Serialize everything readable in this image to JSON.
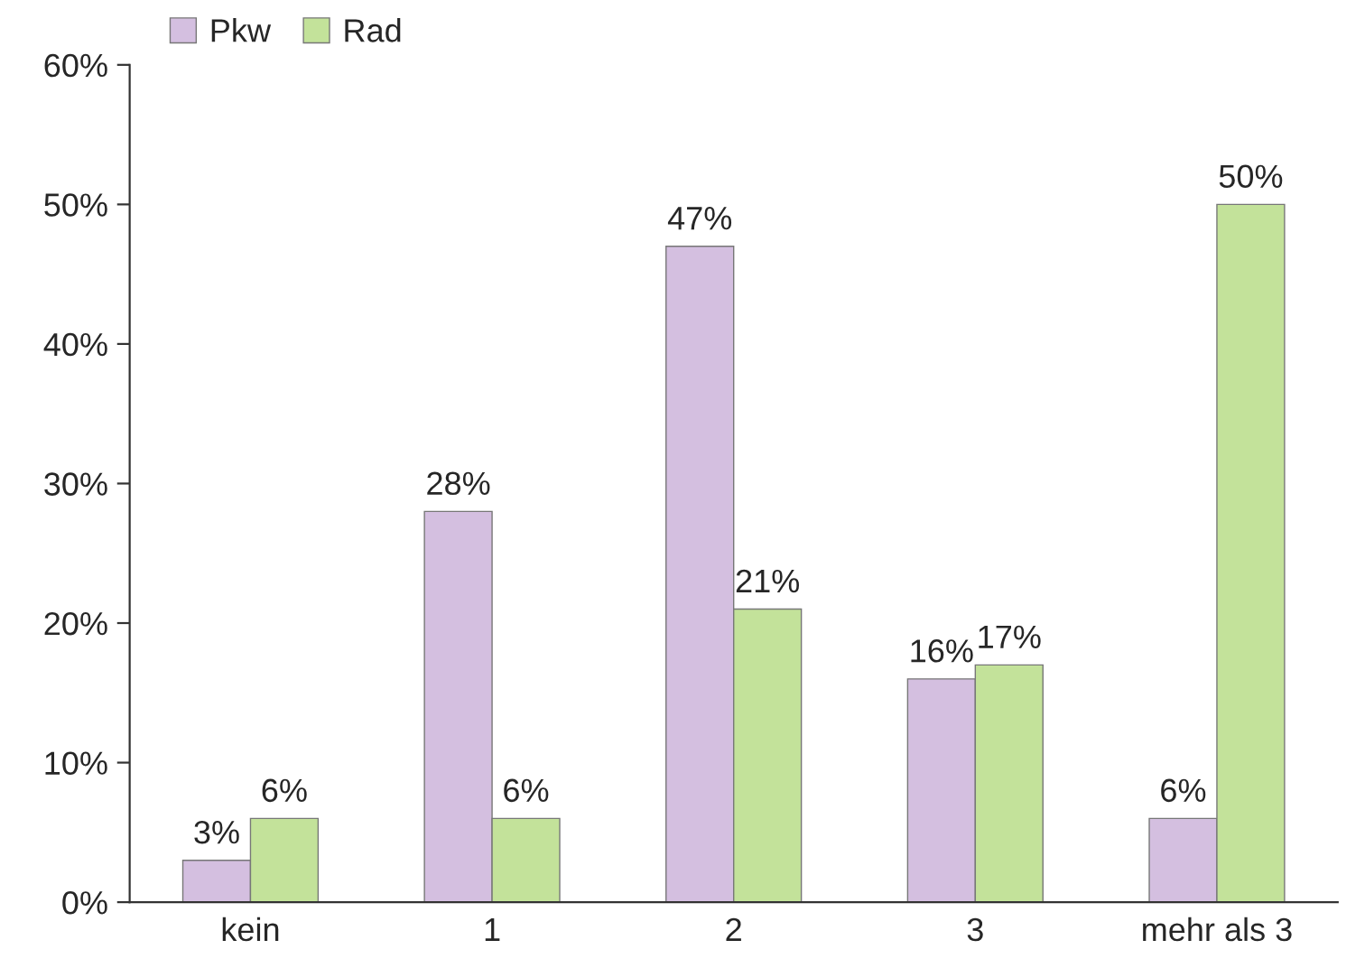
{
  "chart_data": {
    "type": "bar",
    "categories": [
      "kein",
      "1",
      "2",
      "3",
      "mehr als 3"
    ],
    "series": [
      {
        "name": "Pkw",
        "color": "#d4bfe0",
        "values": [
          3,
          28,
          47,
          16,
          6
        ],
        "value_labels": [
          "3%",
          "28%",
          "47%",
          "16%",
          "6%"
        ]
      },
      {
        "name": "Rad",
        "color": "#c3e29a",
        "values": [
          6,
          6,
          21,
          17,
          50
        ],
        "value_labels": [
          "6%",
          "6%",
          "21%",
          "17%",
          "50%"
        ]
      }
    ],
    "ylim": [
      0,
      60
    ],
    "yticks": [
      {
        "value": 0,
        "label": "0%"
      },
      {
        "value": 10,
        "label": "10%"
      },
      {
        "value": 20,
        "label": "20%"
      },
      {
        "value": 30,
        "label": "30%"
      },
      {
        "value": 40,
        "label": "40%"
      },
      {
        "value": 50,
        "label": "50%"
      },
      {
        "value": 60,
        "label": "60%"
      }
    ],
    "grid": false,
    "legend": "top left"
  }
}
